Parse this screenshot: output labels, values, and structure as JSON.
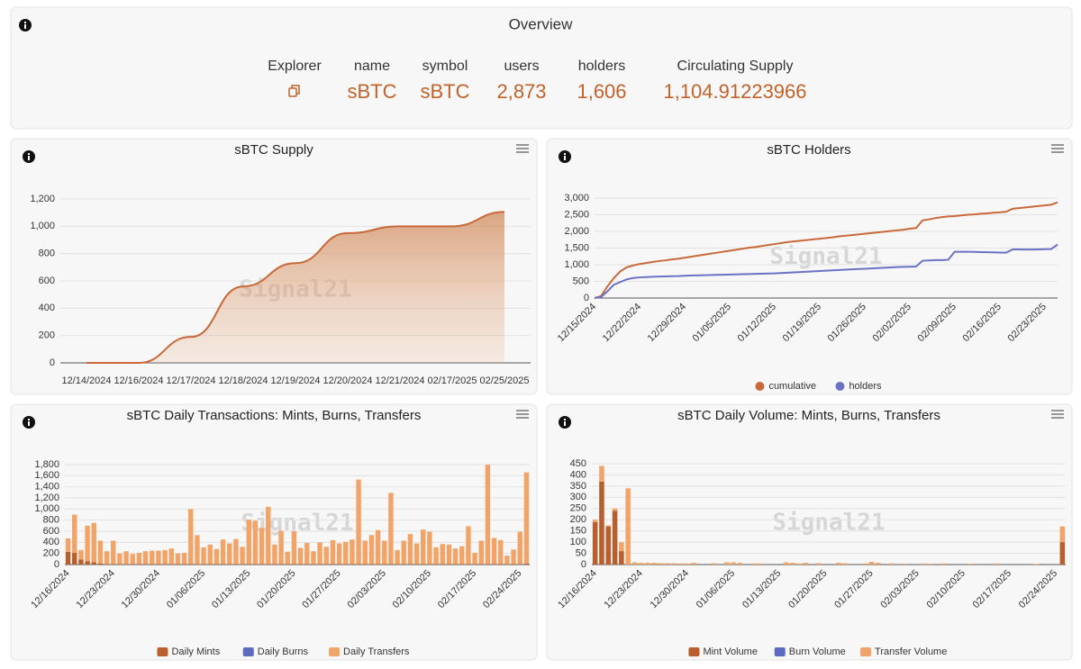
{
  "overview": {
    "title": "Overview",
    "fields": [
      {
        "label": "Explorer"
      },
      {
        "label": "name",
        "value": "sBTC"
      },
      {
        "label": "symbol",
        "value": "sBTC"
      },
      {
        "label": "users",
        "value": "2,873"
      },
      {
        "label": "holders",
        "value": "1,606"
      },
      {
        "label": "Circulating Supply",
        "value": "1,104.91223966"
      }
    ]
  },
  "watermark": "Signal21",
  "chart_data": [
    {
      "type": "area",
      "title": "sBTC Supply",
      "categories": [
        "12/14/2024",
        "12/16/2024",
        "12/17/2024",
        "12/18/2024",
        "12/19/2024",
        "12/20/2024",
        "12/21/2024",
        "02/17/2025",
        "02/25/2025"
      ],
      "values": [
        0,
        0,
        190,
        560,
        730,
        950,
        1000,
        1000,
        1104.9
      ],
      "color": "#c8693a",
      "ylim": [
        0,
        1200
      ],
      "yticks": [
        0,
        200,
        400,
        600,
        800,
        {
          "value": 1000,
          "label": "1,000"
        },
        {
          "value": 1200,
          "label": "1,200"
        }
      ],
      "grid": true
    },
    {
      "type": "line",
      "title": "sBTC Holders",
      "categories": [
        "12/15/2024",
        null,
        null,
        null,
        null,
        null,
        null,
        "12/22/2024",
        null,
        null,
        null,
        null,
        null,
        null,
        "12/29/2024",
        null,
        null,
        null,
        null,
        null,
        null,
        "01/05/2025",
        null,
        null,
        null,
        null,
        null,
        null,
        "01/12/2025",
        null,
        null,
        null,
        null,
        null,
        null,
        "01/19/2025",
        null,
        null,
        null,
        null,
        null,
        null,
        "01/26/2025",
        null,
        null,
        null,
        null,
        null,
        null,
        "02/02/2025",
        null,
        null,
        null,
        null,
        null,
        null,
        "02/09/2025",
        null,
        null,
        null,
        null,
        null,
        null,
        "02/16/2025",
        null,
        null,
        null,
        null,
        null,
        null,
        "02/23/2025",
        null,
        null
      ],
      "series": [
        {
          "name": "cumulative",
          "color": "#c8693a",
          "values": [
            0,
            60,
            350,
            600,
            800,
            920,
            980,
            1020,
            1050,
            1080,
            1110,
            1130,
            1160,
            1180,
            1210,
            1240,
            1270,
            1300,
            1330,
            1360,
            1390,
            1420,
            1450,
            1480,
            1510,
            1530,
            1560,
            1590,
            1620,
            1650,
            1680,
            1700,
            1720,
            1740,
            1760,
            1780,
            1800,
            1820,
            1850,
            1870,
            1890,
            1910,
            1930,
            1950,
            1970,
            1990,
            2010,
            2030,
            2050,
            2080,
            2100,
            2330,
            2360,
            2400,
            2430,
            2450,
            2460,
            2480,
            2500,
            2510,
            2530,
            2540,
            2560,
            2570,
            2590,
            2680,
            2700,
            2720,
            2740,
            2760,
            2780,
            2800,
            2873
          ]
        },
        {
          "name": "holders",
          "color": "#6b72c4",
          "values": [
            0,
            30,
            200,
            400,
            480,
            560,
            600,
            620,
            630,
            640,
            645,
            650,
            655,
            660,
            670,
            675,
            680,
            685,
            690,
            695,
            700,
            705,
            710,
            715,
            720,
            725,
            730,
            735,
            740,
            750,
            760,
            770,
            780,
            790,
            800,
            810,
            820,
            830,
            840,
            850,
            860,
            870,
            880,
            890,
            900,
            910,
            920,
            930,
            935,
            940,
            945,
            1120,
            1130,
            1140,
            1140,
            1150,
            1390,
            1390,
            1390,
            1385,
            1380,
            1375,
            1370,
            1365,
            1360,
            1460,
            1460,
            1455,
            1455,
            1460,
            1465,
            1470,
            1606
          ]
        }
      ],
      "ylim": [
        0,
        3000
      ],
      "yticks": [
        0,
        500,
        {
          "value": 1000,
          "label": "1,000"
        },
        {
          "value": 1500,
          "label": "1,500"
        },
        {
          "value": 2000,
          "label": "2,000"
        },
        {
          "value": 2500,
          "label": "2,500"
        },
        {
          "value": 3000,
          "label": "3,000"
        }
      ],
      "grid": true,
      "legend": "bottom"
    },
    {
      "type": "bar",
      "stacked": true,
      "title": "sBTC Daily Transactions: Mints, Burns, Transfers",
      "categories": [
        "12/16/2024",
        null,
        null,
        null,
        null,
        null,
        null,
        "12/23/2024",
        null,
        null,
        null,
        null,
        null,
        null,
        "12/30/2024",
        null,
        null,
        null,
        null,
        null,
        null,
        "01/06/2025",
        null,
        null,
        null,
        null,
        null,
        null,
        "01/13/2025",
        null,
        null,
        null,
        null,
        null,
        null,
        "01/20/2025",
        null,
        null,
        null,
        null,
        null,
        null,
        "01/27/2025",
        null,
        null,
        null,
        null,
        null,
        null,
        "02/03/2025",
        null,
        null,
        null,
        null,
        null,
        null,
        "02/10/2025",
        null,
        null,
        null,
        null,
        null,
        null,
        "02/17/2025",
        null,
        null,
        null,
        null,
        null,
        null,
        "02/24/2025",
        null
      ],
      "series": [
        {
          "name": "Daily Mints",
          "color": "#b85f2d",
          "values": [
            230,
            210,
            90,
            60,
            40,
            20,
            10,
            10,
            10,
            10,
            10,
            10,
            10,
            10,
            10,
            10,
            10,
            10,
            10,
            10,
            10,
            10,
            10,
            10,
            10,
            10,
            10,
            10,
            10,
            10,
            10,
            10,
            10,
            10,
            10,
            10,
            10,
            10,
            10,
            10,
            10,
            10,
            10,
            10,
            10,
            10,
            10,
            10,
            10,
            10,
            10,
            10,
            10,
            10,
            10,
            10,
            10,
            10,
            10,
            10,
            10,
            10,
            10,
            10,
            10,
            10,
            10,
            10,
            10,
            10,
            10,
            20
          ]
        },
        {
          "name": "Daily Burns",
          "color": "#5c6bc0",
          "values": [
            0,
            0,
            0,
            0,
            0,
            0,
            0,
            0,
            0,
            0,
            0,
            0,
            0,
            0,
            0,
            0,
            0,
            0,
            0,
            0,
            0,
            0,
            0,
            0,
            0,
            0,
            0,
            0,
            0,
            0,
            0,
            0,
            0,
            0,
            0,
            0,
            0,
            0,
            0,
            0,
            0,
            0,
            0,
            0,
            0,
            0,
            0,
            0,
            0,
            0,
            0,
            0,
            0,
            0,
            0,
            0,
            0,
            0,
            0,
            0,
            0,
            0,
            0,
            0,
            0,
            0,
            0,
            0,
            0,
            0,
            0,
            0
          ]
        },
        {
          "name": "Daily Transfers",
          "color": "#f2a468",
          "values": [
            240,
            690,
            170,
            640,
            710,
            410,
            230,
            420,
            190,
            230,
            180,
            200,
            230,
            240,
            240,
            250,
            280,
            190,
            200,
            990,
            520,
            300,
            350,
            270,
            440,
            370,
            450,
            310,
            800,
            780,
            650,
            1030,
            350,
            600,
            220,
            590,
            290,
            380,
            230,
            390,
            310,
            430,
            370,
            400,
            440,
            1520,
            420,
            520,
            610,
            420,
            1280,
            250,
            420,
            540,
            370,
            620,
            580,
            300,
            360,
            350,
            280,
            320,
            680,
            200,
            420,
            1790,
            470,
            430,
            150,
            260,
            580,
            1640
          ]
        }
      ],
      "ylim": [
        0,
        1800
      ],
      "yticks": [
        0,
        200,
        400,
        600,
        800,
        {
          "value": 1000,
          "label": "1,000"
        },
        {
          "value": 1200,
          "label": "1,200"
        },
        {
          "value": 1400,
          "label": "1,400"
        },
        {
          "value": 1600,
          "label": "1,600"
        },
        {
          "value": 1800,
          "label": "1,800"
        }
      ],
      "grid": true,
      "legend": "bottom"
    },
    {
      "type": "bar",
      "stacked": true,
      "title": "sBTC Daily Volume: Mints, Burns, Transfers",
      "categories": [
        "12/16/2024",
        null,
        null,
        null,
        null,
        null,
        null,
        "12/23/2024",
        null,
        null,
        null,
        null,
        null,
        null,
        "12/30/2024",
        null,
        null,
        null,
        null,
        null,
        null,
        "01/06/2025",
        null,
        null,
        null,
        null,
        null,
        null,
        "01/13/2025",
        null,
        null,
        null,
        null,
        null,
        null,
        "01/20/2025",
        null,
        null,
        null,
        null,
        null,
        null,
        "01/27/2025",
        null,
        null,
        null,
        null,
        null,
        null,
        "02/03/2025",
        null,
        null,
        null,
        null,
        null,
        null,
        "02/10/2025",
        null,
        null,
        null,
        null,
        null,
        null,
        "02/17/2025",
        null,
        null,
        null,
        null,
        null,
        null,
        "02/24/2025",
        null
      ],
      "series": [
        {
          "name": "Mint Volume",
          "color": "#b85f2d",
          "values": [
            190,
            370,
            170,
            240,
            60,
            0,
            0,
            0,
            0,
            0,
            0,
            0,
            0,
            0,
            0,
            0,
            0,
            0,
            0,
            0,
            0,
            0,
            0,
            0,
            0,
            0,
            0,
            0,
            0,
            0,
            0,
            0,
            0,
            0,
            0,
            0,
            0,
            0,
            0,
            0,
            0,
            0,
            0,
            0,
            0,
            0,
            0,
            0,
            0,
            0,
            0,
            0,
            0,
            0,
            0,
            0,
            0,
            0,
            0,
            0,
            0,
            0,
            0,
            0,
            0,
            0,
            0,
            0,
            0,
            0,
            0,
            100
          ]
        },
        {
          "name": "Burn Volume",
          "color": "#5c6bc0",
          "values": [
            0,
            0,
            0,
            0,
            0,
            0,
            0,
            0,
            0,
            0,
            0,
            0,
            0,
            0,
            0,
            0,
            0,
            0,
            0,
            0,
            0,
            0,
            0,
            0,
            0,
            0,
            0,
            0,
            0,
            0,
            0,
            0,
            0,
            0,
            0,
            0,
            0,
            0,
            0,
            0,
            0,
            0,
            0,
            0,
            0,
            0,
            0,
            0,
            0,
            0,
            0,
            0,
            0,
            0,
            0,
            0,
            0,
            0,
            0,
            0,
            0,
            0,
            0,
            0,
            0,
            0,
            0,
            0,
            0,
            0,
            0,
            0
          ]
        },
        {
          "name": "Transfer Volume",
          "color": "#f2a468",
          "values": [
            10,
            70,
            5,
            10,
            40,
            340,
            10,
            8,
            8,
            8,
            6,
            6,
            6,
            5,
            5,
            8,
            0,
            0,
            6,
            0,
            10,
            10,
            8,
            0,
            5,
            5,
            0,
            0,
            0,
            10,
            8,
            5,
            8,
            0,
            6,
            0,
            0,
            8,
            6,
            0,
            0,
            5,
            12,
            8,
            0,
            5,
            0,
            4,
            0,
            0,
            5,
            4,
            0,
            5,
            0,
            0,
            0,
            4,
            0,
            0,
            0,
            5,
            0,
            0,
            0,
            0,
            0,
            3,
            0,
            0,
            0,
            70
          ]
        }
      ],
      "ylim": [
        0,
        450
      ],
      "yticks": [
        0,
        50,
        100,
        150,
        200,
        250,
        300,
        350,
        400,
        450
      ],
      "grid": true,
      "legend": "bottom"
    }
  ]
}
